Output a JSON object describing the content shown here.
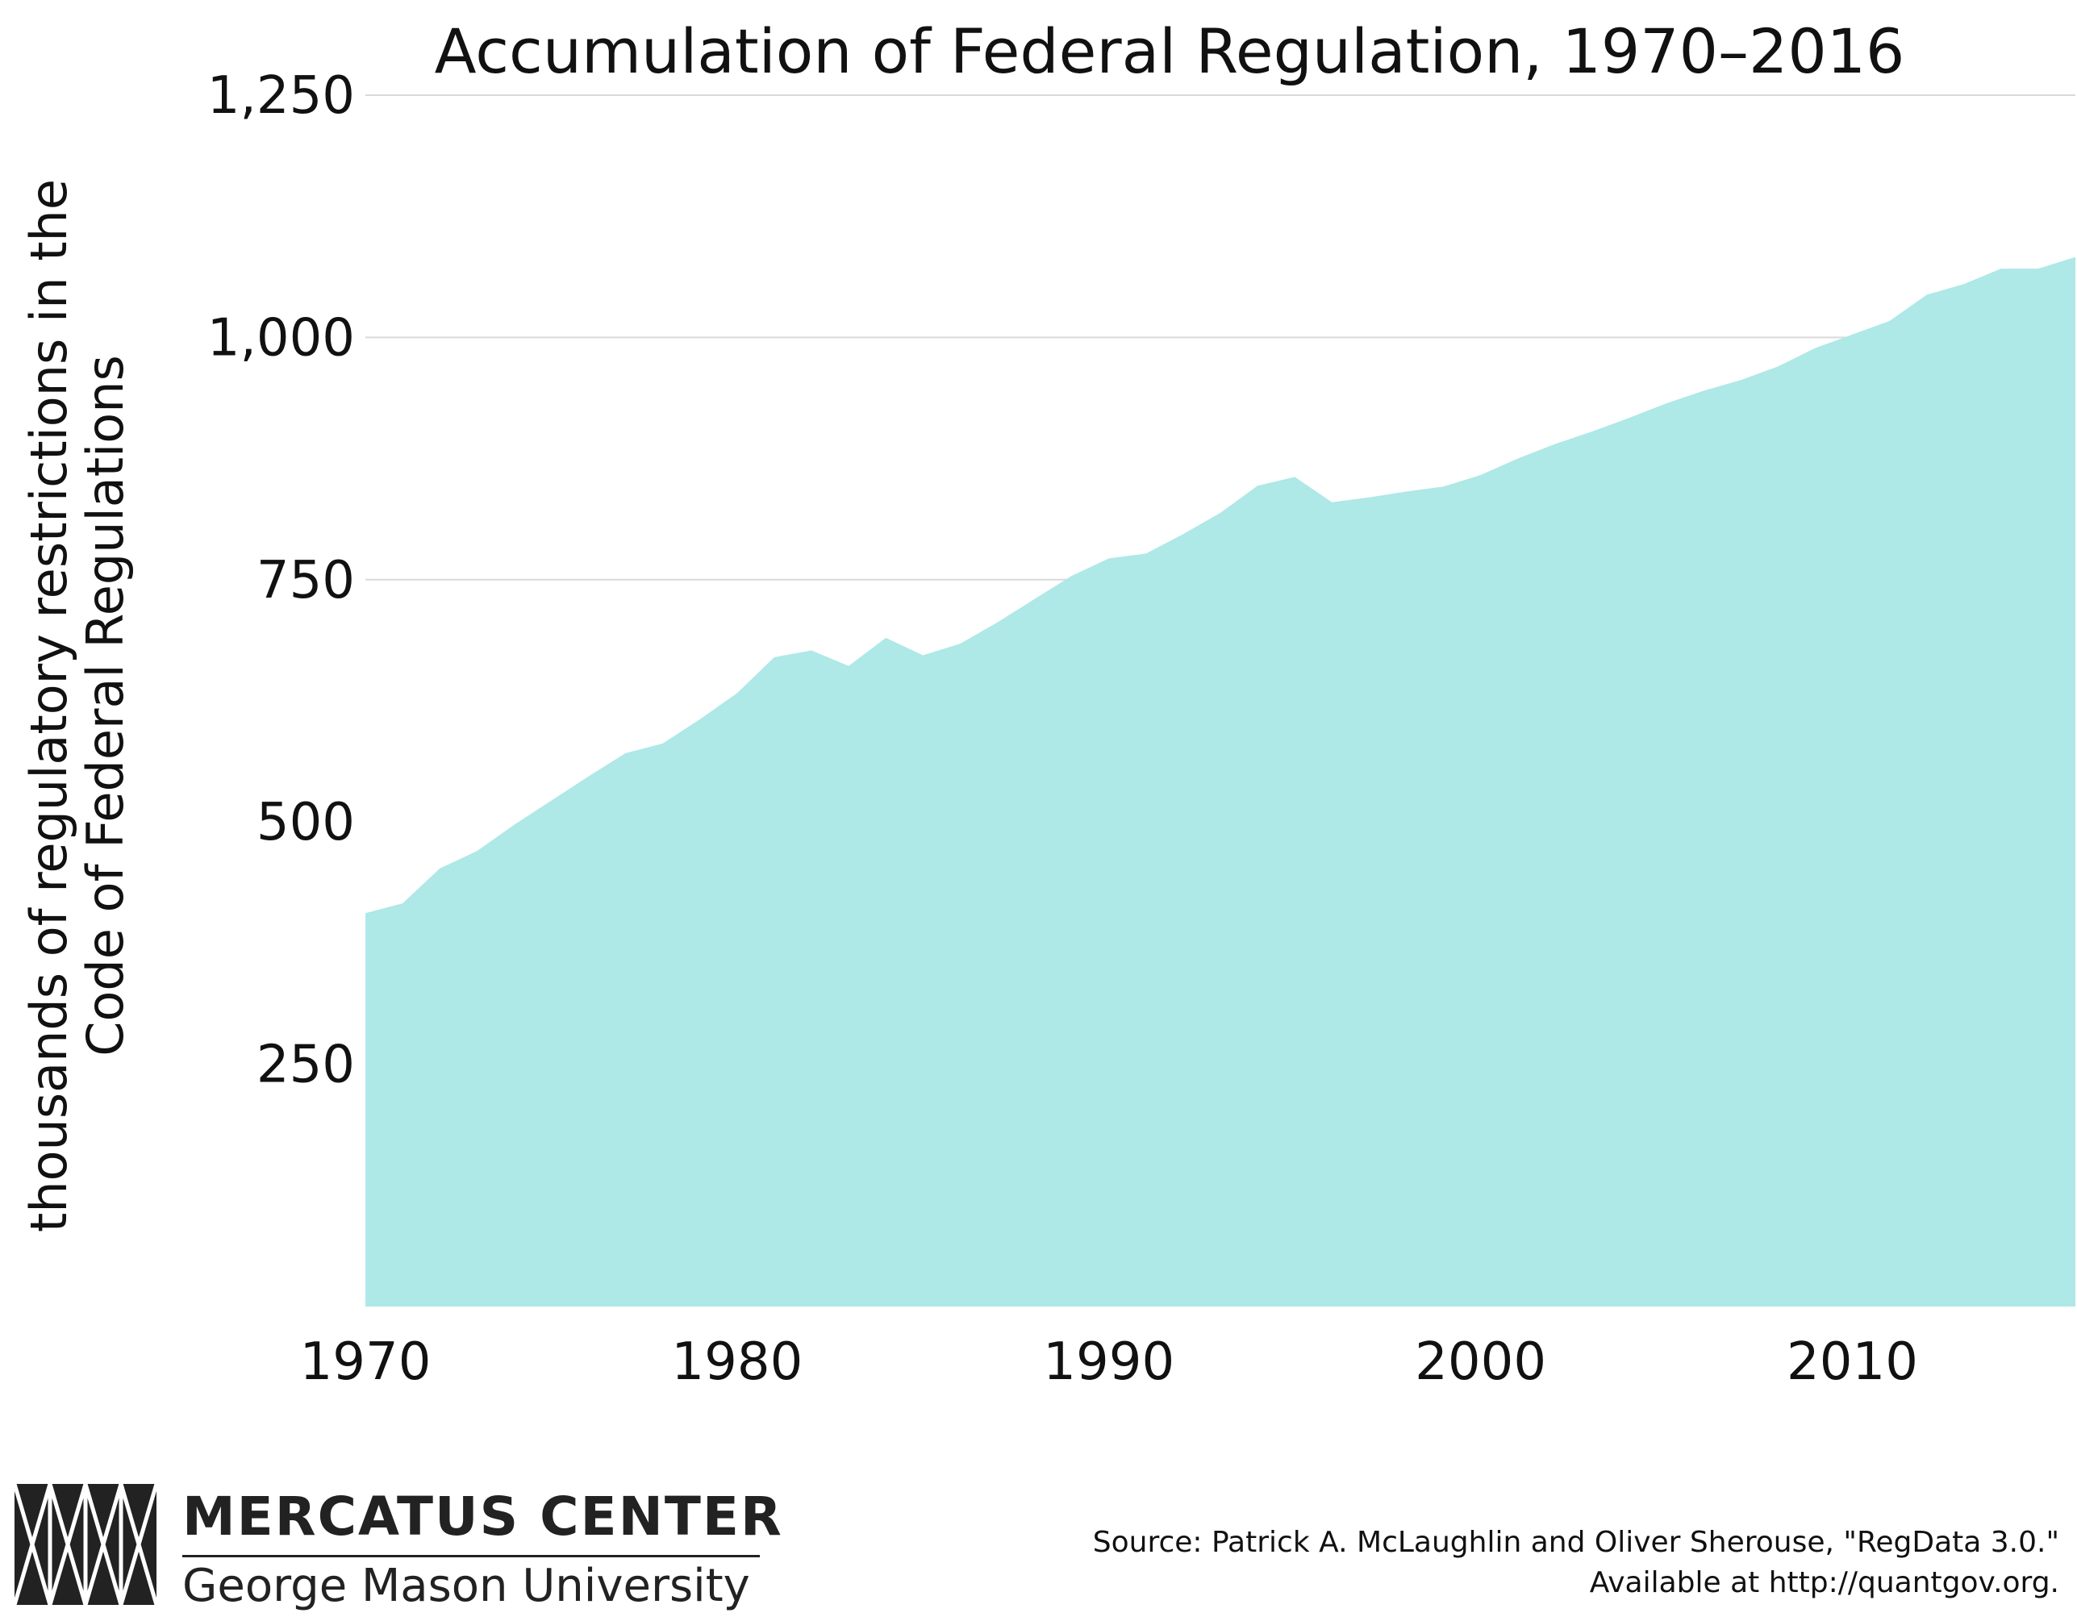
{
  "chart_data": {
    "type": "area",
    "title": "Accumulation of Federal Regulation, 1970–2016",
    "xlabel": "",
    "ylabel_lines": [
      "thousands of regulatory restrictions in the",
      "Code of Federal Regulations"
    ],
    "x": [
      1970,
      1971,
      1972,
      1973,
      1974,
      1975,
      1976,
      1977,
      1978,
      1979,
      1980,
      1981,
      1982,
      1983,
      1984,
      1985,
      1986,
      1987,
      1988,
      1989,
      1990,
      1991,
      1992,
      1993,
      1994,
      1995,
      1996,
      1997,
      1998,
      1999,
      2000,
      2001,
      2002,
      2003,
      2004,
      2005,
      2006,
      2007,
      2008,
      2009,
      2010,
      2011,
      2012,
      2013,
      2014,
      2015,
      2016
    ],
    "series": [
      {
        "values": [
          406,
          416,
          452,
          470,
          497,
          522,
          547,
          571,
          581,
          606,
          633,
          670,
          677,
          661,
          690,
          672,
          684,
          706,
          730,
          754,
          772,
          777,
          797,
          819,
          847,
          856,
          830,
          835,
          841,
          846,
          858,
          875,
          890,
          903,
          917,
          932,
          945,
          956,
          970,
          989,
          1003,
          1017,
          1044,
          1055,
          1071,
          1071,
          1083
        ]
      }
    ],
    "xlim": [
      1970,
      2016
    ],
    "ylim": [
      0,
      1250
    ],
    "xticks": [
      1970,
      1980,
      1990,
      2000,
      2010
    ],
    "xtick_labels": [
      "1970",
      "1980",
      "1990",
      "2000",
      "2010"
    ],
    "yticks": [
      250,
      500,
      750,
      1000,
      1250
    ],
    "ytick_labels": [
      "250",
      "500",
      "750",
      "1,000",
      "1,250"
    ],
    "gridlines": [
      750,
      1000,
      1250
    ],
    "grid": true,
    "colors": {
      "area": "#aee8e7",
      "grid": "#d9d9d9",
      "text": "#111111"
    }
  },
  "footer": {
    "logo_name": "MERCATUS CENTER",
    "logo_sub": "George Mason University",
    "source_line1": "Source: Patrick A. McLaughlin and Oliver Sherouse, \"RegData 3.0.\"",
    "source_line2": "Available at http://quantgov.org."
  }
}
